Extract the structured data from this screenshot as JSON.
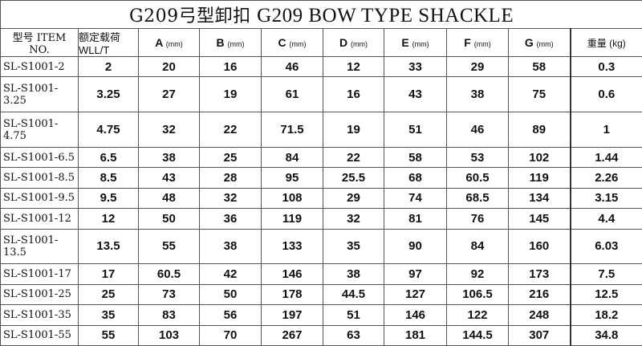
{
  "title_cn": "G209弓型卸扣",
  "title_en": "G209 BOW TYPE SHACKLE",
  "headers": {
    "item": "型号 ITEM NO.",
    "wll": "额定载荷WLL/T",
    "a": "A",
    "b": "B",
    "c": "C",
    "d": "D",
    "e": "E",
    "f": "F",
    "g": "G",
    "unit": "(mm)",
    "weight": "重量 (kg)"
  },
  "rows": [
    [
      "SL-S1001-2",
      "2",
      "20",
      "16",
      "46",
      "12",
      "33",
      "29",
      "58",
      "0.3"
    ],
    [
      "SL-S1001-3.25",
      "3.25",
      "27",
      "19",
      "61",
      "16",
      "43",
      "38",
      "75",
      "0.6"
    ],
    [
      "SL-S1001-4.75",
      "4.75",
      "32",
      "22",
      "71.5",
      "19",
      "51",
      "46",
      "89",
      "1"
    ],
    [
      "SL-S1001-6.5",
      "6.5",
      "38",
      "25",
      "84",
      "22",
      "58",
      "53",
      "102",
      "1.44"
    ],
    [
      "SL-S1001-8.5",
      "8.5",
      "43",
      "28",
      "95",
      "25.5",
      "68",
      "60.5",
      "119",
      "2.26"
    ],
    [
      "SL-S1001-9.5",
      "9.5",
      "48",
      "32",
      "108",
      "29",
      "74",
      "68.5",
      "134",
      "3.15"
    ],
    [
      "SL-S1001-12",
      "12",
      "50",
      "36",
      "119",
      "32",
      "81",
      "76",
      "145",
      "4.4"
    ],
    [
      "SL-S1001-13.5",
      "13.5",
      "55",
      "38",
      "133",
      "35",
      "90",
      "84",
      "160",
      "6.03"
    ],
    [
      "SL-S1001-17",
      "17",
      "60.5",
      "42",
      "146",
      "38",
      "97",
      "92",
      "173",
      "7.5"
    ],
    [
      "SL-S1001-25",
      "25",
      "73",
      "50",
      "178",
      "44.5",
      "127",
      "106.5",
      "216",
      "12.5"
    ],
    [
      "SL-S1001-35",
      "35",
      "83",
      "56",
      "197",
      "51",
      "146",
      "122",
      "248",
      "18.2"
    ],
    [
      "SL-S1001-55",
      "55",
      "103",
      "70",
      "267",
      "63",
      "181",
      "144.5",
      "307",
      "34.8"
    ]
  ]
}
